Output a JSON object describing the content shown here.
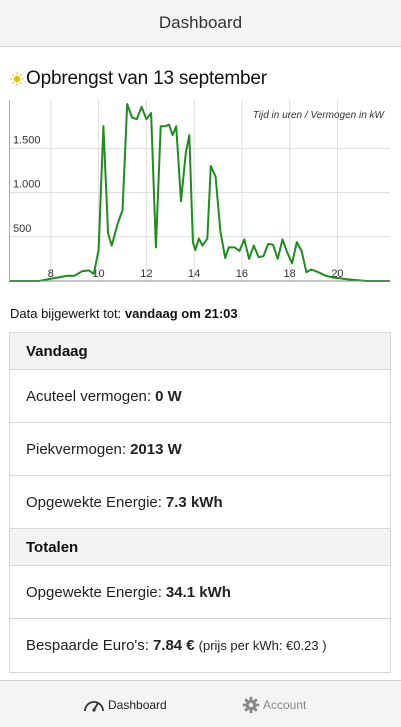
{
  "header": {
    "title": "Dashboard"
  },
  "page": {
    "title": "Opbrengst van 13 september",
    "title_icon": "sun-icon"
  },
  "chart_data": {
    "type": "line",
    "annotation": "Tijd in uren / Vermogen in kW",
    "xlim": [
      6.25,
      22.2
    ],
    "ylim": [
      0,
      2013
    ],
    "x_ticks": [
      8,
      10,
      12,
      14,
      16,
      18,
      20
    ],
    "y_ticks": [
      {
        "value": 500,
        "label": "500"
      },
      {
        "value": 1000,
        "label": "1.000"
      },
      {
        "value": 1500,
        "label": "1.500"
      }
    ],
    "grid": true,
    "line_color": "#1e8c1e",
    "x": [
      6.25,
      7.5,
      7.9,
      8.3,
      8.7,
      9.0,
      9.3,
      9.6,
      9.8,
      10.0,
      10.2,
      10.4,
      10.55,
      10.8,
      11.0,
      11.2,
      11.4,
      11.6,
      11.8,
      12.0,
      12.2,
      12.4,
      12.6,
      12.8,
      12.95,
      13.1,
      13.25,
      13.45,
      13.65,
      13.8,
      13.95,
      14.05,
      14.2,
      14.35,
      14.55,
      14.7,
      14.9,
      15.1,
      15.3,
      15.45,
      15.7,
      15.9,
      16.1,
      16.3,
      16.5,
      16.7,
      16.9,
      17.1,
      17.3,
      17.5,
      17.7,
      17.9,
      18.1,
      18.3,
      18.5,
      18.7,
      18.9,
      19.2,
      19.5,
      19.8,
      20.1,
      20.4,
      20.8,
      21.2,
      22.2
    ],
    "y": [
      0,
      0,
      20,
      40,
      60,
      60,
      110,
      120,
      80,
      350,
      1750,
      540,
      400,
      650,
      800,
      2000,
      1850,
      1830,
      1970,
      1830,
      1900,
      380,
      1750,
      1750,
      1770,
      1650,
      1750,
      900,
      1450,
      1650,
      440,
      350,
      480,
      400,
      480,
      1300,
      1180,
      560,
      260,
      380,
      380,
      340,
      470,
      250,
      400,
      270,
      280,
      420,
      410,
      250,
      470,
      320,
      200,
      440,
      340,
      100,
      130,
      100,
      60,
      40,
      30,
      20,
      10,
      0,
      0
    ]
  },
  "status": {
    "label": "Data bijgewerkt tot:",
    "value": "vandaag om 21:03"
  },
  "today": {
    "heading": "Vandaag",
    "current_power_label": "Acuteel vermogen:",
    "current_power_value": "0 W",
    "peak_power_label": "Piekvermogen:",
    "peak_power_value": "2013 W",
    "energy_label": "Opgewekte Energie:",
    "energy_value": "7.3 kWh"
  },
  "totals": {
    "heading": "Totalen",
    "energy_label": "Opgewekte Energie:",
    "energy_value": "34.1 kWh",
    "saved_label": "Bespaarde Euro's:",
    "saved_value": "7.84 €",
    "price_note": "(prijs per kWh: €0.23 )"
  },
  "footer": {
    "dashboard_label": "Dashboard",
    "dashboard_icon": "gauge-icon",
    "account_label": "Account",
    "account_icon": "gear-icon"
  }
}
